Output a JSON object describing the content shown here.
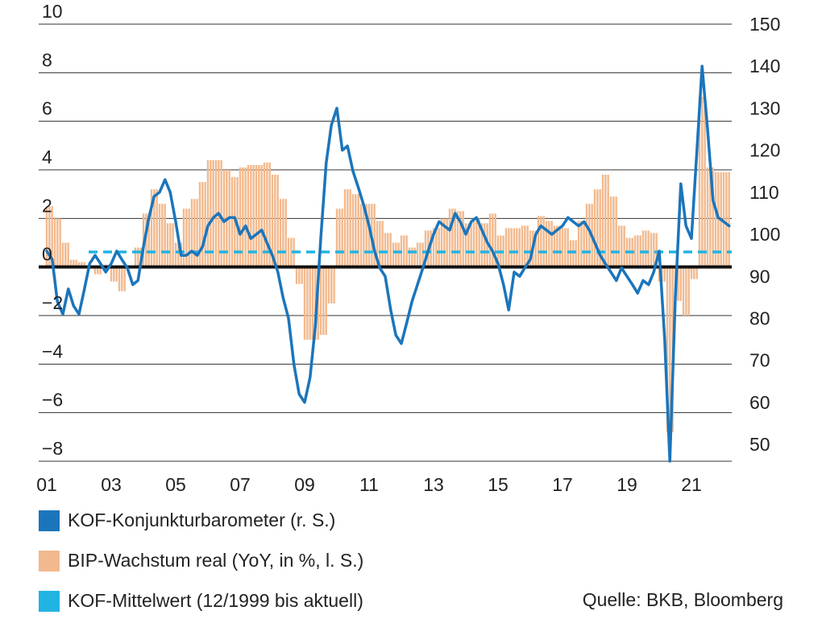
{
  "chart_data": {
    "type": "bar+line",
    "left_axis": {
      "ticks": [
        "10",
        "8",
        "6",
        "4",
        "2",
        "0",
        "−2",
        "−4",
        "−6",
        "−8"
      ],
      "ylim": [
        -8,
        10
      ]
    },
    "right_axis": {
      "ticks": [
        "150",
        "140",
        "130",
        "120",
        "110",
        "100",
        "90",
        "80",
        "70",
        "60",
        "50"
      ],
      "ylim": [
        46,
        150
      ]
    },
    "x_axis": {
      "ticks": [
        "01",
        "03",
        "05",
        "07",
        "09",
        "11",
        "13",
        "15",
        "17",
        "19",
        "21"
      ],
      "xlim": [
        2000.75,
        2022.25
      ]
    },
    "grid": true,
    "colors": {
      "kof": "#1b75bb",
      "bip": "#f2b98e",
      "mean": "#21b4e3",
      "zero": "#111111",
      "grid": "#333333"
    },
    "series": [
      {
        "name": "BIP-Wachstum real (YoY, in %, l. S.)",
        "axis": "left",
        "type": "bar",
        "x": [
          2001.0,
          2001.25,
          2001.5,
          2001.75,
          2002.0,
          2002.25,
          2002.5,
          2002.75,
          2003.0,
          2003.25,
          2003.5,
          2003.75,
          2004.0,
          2004.25,
          2004.5,
          2004.75,
          2005.0,
          2005.25,
          2005.5,
          2005.75,
          2006.0,
          2006.25,
          2006.5,
          2006.75,
          2007.0,
          2007.25,
          2007.5,
          2007.75,
          2008.0,
          2008.25,
          2008.5,
          2008.75,
          2009.0,
          2009.25,
          2009.5,
          2009.75,
          2010.0,
          2010.25,
          2010.5,
          2010.75,
          2011.0,
          2011.25,
          2011.5,
          2011.75,
          2012.0,
          2012.25,
          2012.5,
          2012.75,
          2013.0,
          2013.25,
          2013.5,
          2013.75,
          2014.0,
          2014.25,
          2014.5,
          2014.75,
          2015.0,
          2015.25,
          2015.5,
          2015.75,
          2016.0,
          2016.25,
          2016.5,
          2016.75,
          2017.0,
          2017.25,
          2017.5,
          2017.75,
          2018.0,
          2018.25,
          2018.5,
          2018.75,
          2019.0,
          2019.25,
          2019.5,
          2019.75,
          2020.0,
          2020.25,
          2020.5,
          2020.75,
          2021.0,
          2021.25,
          2021.5,
          2021.75,
          2022.0
        ],
        "values": [
          2.5,
          2.0,
          1.0,
          0.3,
          0.2,
          0.0,
          -0.3,
          0.1,
          -0.6,
          -1.0,
          0.0,
          0.8,
          2.2,
          3.2,
          2.6,
          1.8,
          1.0,
          2.4,
          2.8,
          3.5,
          4.4,
          4.4,
          4.0,
          3.7,
          4.1,
          4.2,
          4.2,
          4.3,
          3.8,
          2.8,
          1.2,
          -0.7,
          -3.0,
          -3.0,
          -2.8,
          -1.5,
          2.4,
          3.2,
          3.0,
          2.6,
          2.6,
          1.9,
          1.4,
          1.0,
          1.3,
          0.8,
          1.0,
          1.5,
          1.6,
          2.0,
          2.4,
          2.3,
          1.8,
          2.0,
          1.8,
          2.2,
          1.3,
          1.6,
          1.6,
          1.7,
          1.5,
          2.1,
          1.9,
          1.7,
          1.6,
          1.1,
          1.9,
          2.6,
          3.2,
          3.8,
          2.9,
          1.7,
          1.2,
          1.3,
          1.5,
          1.4,
          -0.6,
          -6.8,
          -1.4,
          -2.0,
          -0.5,
          7.0,
          4.1,
          3.9,
          3.9
        ]
      },
      {
        "name": "KOF-Konjunkturbarometer (r. S.)",
        "axis": "right",
        "type": "line",
        "x": [
          2001.0,
          2001.17,
          2001.33,
          2001.5,
          2001.67,
          2001.83,
          2002.0,
          2002.17,
          2002.33,
          2002.5,
          2002.67,
          2002.83,
          2003.0,
          2003.17,
          2003.33,
          2003.5,
          2003.67,
          2003.83,
          2004.0,
          2004.17,
          2004.33,
          2004.5,
          2004.67,
          2004.83,
          2005.0,
          2005.17,
          2005.33,
          2005.5,
          2005.67,
          2005.83,
          2006.0,
          2006.17,
          2006.33,
          2006.5,
          2006.67,
          2006.83,
          2007.0,
          2007.17,
          2007.33,
          2007.5,
          2007.67,
          2007.83,
          2008.0,
          2008.17,
          2008.33,
          2008.5,
          2008.67,
          2008.83,
          2009.0,
          2009.17,
          2009.33,
          2009.5,
          2009.67,
          2009.83,
          2010.0,
          2010.17,
          2010.33,
          2010.5,
          2010.67,
          2010.83,
          2011.0,
          2011.17,
          2011.33,
          2011.5,
          2011.67,
          2011.83,
          2012.0,
          2012.17,
          2012.33,
          2012.5,
          2012.67,
          2012.83,
          2013.0,
          2013.17,
          2013.33,
          2013.5,
          2013.67,
          2013.83,
          2014.0,
          2014.17,
          2014.33,
          2014.5,
          2014.67,
          2014.83,
          2015.0,
          2015.17,
          2015.33,
          2015.5,
          2015.67,
          2015.83,
          2016.0,
          2016.17,
          2016.33,
          2016.5,
          2016.67,
          2016.83,
          2017.0,
          2017.17,
          2017.33,
          2017.5,
          2017.67,
          2017.83,
          2018.0,
          2018.17,
          2018.33,
          2018.5,
          2018.67,
          2018.83,
          2019.0,
          2019.17,
          2019.33,
          2019.5,
          2019.67,
          2019.83,
          2020.0,
          2020.17,
          2020.33,
          2020.5,
          2020.67,
          2020.83,
          2021.0,
          2021.17,
          2021.33,
          2021.5,
          2021.67,
          2021.83,
          2022.0,
          2022.17
        ],
        "values": [
          96,
          94,
          84,
          81,
          87,
          83,
          81,
          87,
          93,
          95,
          93,
          91,
          93,
          96,
          94,
          92,
          88,
          89,
          97,
          104,
          109,
          110,
          113,
          110,
          103,
          95,
          95,
          96,
          95,
          97,
          102,
          104,
          105,
          103,
          104,
          104,
          100,
          102,
          99,
          100,
          101,
          98,
          95,
          91,
          85,
          80,
          69,
          62,
          60,
          66,
          78,
          99,
          117,
          126,
          130,
          120,
          121,
          115,
          111,
          107,
          102,
          96,
          92,
          90,
          82,
          76,
          74,
          79,
          84,
          88,
          92,
          96,
          100,
          103,
          102,
          101,
          105,
          103,
          100,
          103,
          104,
          101,
          98,
          96,
          93,
          88,
          82,
          91,
          90,
          92,
          94,
          100,
          102,
          101,
          100,
          101,
          102,
          104,
          103,
          102,
          103,
          101,
          98,
          95,
          93,
          91,
          89,
          92,
          90,
          88,
          86,
          89,
          88,
          91,
          96,
          75,
          46,
          85,
          112,
          102,
          99,
          120,
          140,
          125,
          108,
          104,
          103,
          102
        ]
      },
      {
        "name": "KOF-Mittelwert (12/1999 bis aktuell)",
        "axis": "right",
        "type": "line",
        "values": [
          95.8
        ]
      }
    ]
  },
  "legend": {
    "kof_label": "KOF-Konjunkturbarometer (r. S.)",
    "bip_label": "BIP-Wachstum real (YoY, in %, l. S.)",
    "mean_label": "KOF-Mittelwert (12/1999 bis aktuell)"
  },
  "source": "Quelle: BKB, Bloomberg"
}
